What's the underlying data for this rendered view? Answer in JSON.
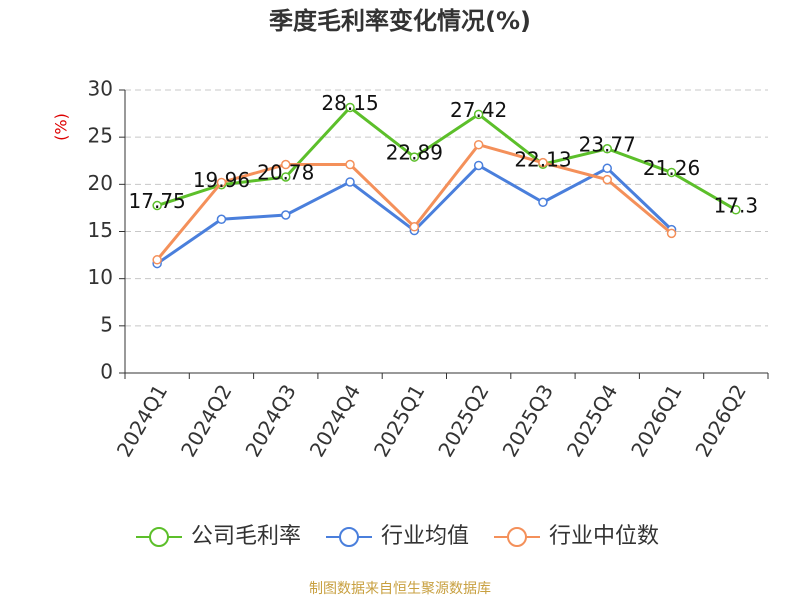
{
  "chart_data": {
    "type": "line",
    "title": "季度毛利率变化情况(%)",
    "y_label": "(%)",
    "source": "制图数据来自恒生聚源数据库",
    "categories": [
      "2024Q1",
      "2024Q2",
      "2024Q3",
      "2024Q4",
      "2025Q1",
      "2025Q2",
      "2025Q3",
      "2025Q4",
      "2026Q1",
      "2026Q2"
    ],
    "series": [
      {
        "name": "公司毛利率",
        "color": "#5cbf2a",
        "values": [
          17.75,
          19.96,
          20.78,
          28.15,
          22.89,
          27.42,
          22.13,
          23.77,
          21.26,
          17.3
        ],
        "show_labels": true
      },
      {
        "name": "行业均值",
        "color": "#4a7fdc",
        "values": [
          11.6,
          16.3,
          16.75,
          20.25,
          15.1,
          22.0,
          18.1,
          21.7,
          15.2,
          null
        ]
      },
      {
        "name": "行业中位数",
        "color": "#f4905a",
        "values": [
          12.0,
          20.2,
          22.1,
          22.1,
          15.5,
          24.2,
          22.3,
          20.5,
          14.8,
          null
        ]
      }
    ],
    "ylim": [
      0,
      30
    ],
    "yticks": [
      0,
      5,
      10,
      15,
      20,
      25,
      30
    ],
    "grid": true
  }
}
